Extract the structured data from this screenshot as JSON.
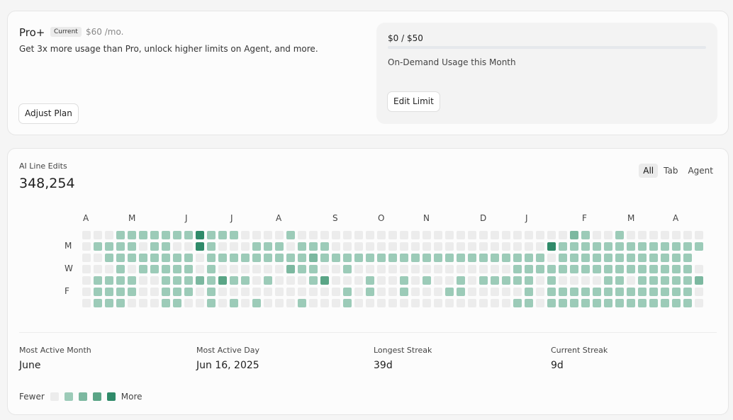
{
  "plan": {
    "name": "Pro+",
    "badge": "Current",
    "price": "$60 /mo.",
    "description": "Get 3x more usage than Pro, unlock higher limits on Agent, and more.",
    "adjust_label": "Adjust Plan"
  },
  "usage": {
    "amount": "$0 / $50",
    "fraction": 0,
    "label": "On-Demand Usage this Month",
    "edit_label": "Edit Limit"
  },
  "stats": {
    "title": "AI Line Edits",
    "total": "348,254",
    "filters": [
      {
        "label": "All",
        "active": true
      },
      {
        "label": "Tab",
        "active": false
      },
      {
        "label": "Agent",
        "active": false
      }
    ],
    "heatmap": {
      "months": [
        "A",
        "M",
        "J",
        "J",
        "A",
        "S",
        "O",
        "N",
        "D",
        "J",
        "F",
        "M",
        "A"
      ],
      "month_weeks": [
        0,
        4,
        9,
        13,
        17,
        22,
        26,
        30,
        35,
        39,
        44,
        48,
        52
      ],
      "days": [
        "M",
        "W",
        "F"
      ],
      "day_rows": [
        1,
        3,
        5
      ],
      "levels": [
        "0001111111411100111001111111111111111111111211111111111",
        "0111101101411011110111111111111111111111141111111111111",
        "0011111111011111111121111111111111111111111111111111110",
        "0001111111111111112111111111111111111111111111111111110",
        "0111111111213111101113111111111111111111111111111111112",
        "0111111111111111111111111111111111111111111111111111111",
        "0111111111111111111111111111111111111111111111111111111"
      ],
      "empty_mask": [
        "1110000000000000110001111111111111111111111001101111111",
        "1000010001001010001000111111111111111111100000000000000",
        "1100000000100000000000000000000000000000010000000000001",
        "1110100000101111110001101111111111111100000000000000001",
        "1000011000000001011100111011010110100000101111001000000",
        "1000011000101111111111101011011100111110100000000000001",
        "1000111001101010111011101111111111111100100000000000001"
      ],
      "colors": [
        "#ececec",
        "#9ccbb8",
        "#7cb8a0",
        "#5aa586",
        "#2f8a69"
      ]
    },
    "most_active_month": {
      "label": "Most Active Month",
      "value": "June"
    },
    "most_active_day": {
      "label": "Most Active Day",
      "value": "Jun 16, 2025"
    },
    "longest_streak": {
      "label": "Longest Streak",
      "value": "39d"
    },
    "current_streak": {
      "label": "Current Streak",
      "value": "9d"
    },
    "legend": {
      "fewer": "Fewer",
      "more": "More"
    }
  }
}
